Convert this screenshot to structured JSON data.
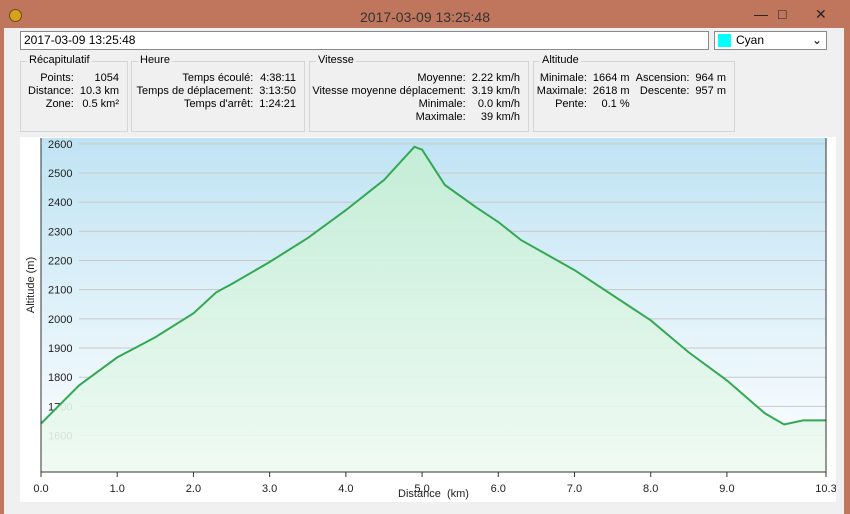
{
  "window": {
    "title": "2017-03-09 13:25:48"
  },
  "toolbar": {
    "field": "2017-03-09 13:25:48",
    "color": "Cyan"
  },
  "groups": [
    {
      "title": "Récapitulatif",
      "columns": 2,
      "items": [
        {
          "label": "Points:",
          "value": "1054"
        },
        {
          "label": "Distance:",
          "value": "10.3 km"
        },
        {
          "label": "Zone:",
          "value": "0.5 km²"
        }
      ]
    },
    {
      "title": "Heure",
      "columns": 2,
      "items": [
        {
          "label": "Temps écoulé:",
          "value": "4:38:11"
        },
        {
          "label": "Temps de déplacement:",
          "value": "3:13:50"
        },
        {
          "label": "Temps d'arrêt:",
          "value": "1:24:21"
        }
      ]
    },
    {
      "title": "Vitesse",
      "columns": 2,
      "items": [
        {
          "label": "Moyenne:",
          "value": "2.22 km/h"
        },
        {
          "label": "Vitesse moyenne déplacement:",
          "value": "3.19 km/h"
        },
        {
          "label": "Minimale:",
          "value": "0.0 km/h"
        },
        {
          "label": "Maximale:",
          "value": "39 km/h"
        }
      ]
    },
    {
      "title": "Altitude",
      "columns": 4,
      "items": [
        {
          "label": "Minimale:",
          "value": "1664 m"
        },
        {
          "label": "Ascension:",
          "value": "964 m"
        },
        {
          "label": "Maximale:",
          "value": "2618 m"
        },
        {
          "label": "Descente:",
          "value": "957 m"
        },
        {
          "label": "Pente:",
          "value": "0.1 %"
        }
      ]
    }
  ],
  "chart_data": {
    "type": "area",
    "x_label": "Distance  (km)",
    "y_label": "Altitude (m)",
    "color": "#33a853",
    "grid": true,
    "x": [
      0,
      0.5,
      1.0,
      1.5,
      2.0,
      2.3,
      2.5,
      3.0,
      3.5,
      4.0,
      4.5,
      4.9,
      5.0,
      5.3,
      5.7,
      6.0,
      6.3,
      7.0,
      8.0,
      8.5,
      9.0,
      9.5,
      9.75,
      10.0,
      10.3
    ],
    "values": [
      1641,
      1772,
      1868,
      1937,
      2019,
      2091,
      2119,
      2195,
      2277,
      2373,
      2476,
      2590,
      2580,
      2459,
      2384,
      2332,
      2270,
      2167,
      1995,
      1885,
      1789,
      1676,
      1638,
      1652,
      1652
    ],
    "xlim": [
      0,
      10.3
    ],
    "ylim": [
      1475,
      2620
    ],
    "xticks": [
      {
        "value": 0,
        "label": "0.0"
      },
      {
        "value": 1,
        "label": "1.0"
      },
      {
        "value": 2,
        "label": "2.0"
      },
      {
        "value": 3,
        "label": "3.0"
      },
      {
        "value": 4,
        "label": "4.0"
      },
      {
        "value": 5,
        "label": "5.0"
      },
      {
        "value": 6,
        "label": "6.0"
      },
      {
        "value": 7,
        "label": "7.0"
      },
      {
        "value": 8,
        "label": "8.0"
      },
      {
        "value": 9,
        "label": "9.0"
      },
      10.3
    ],
    "yticks": [
      1600,
      1700,
      1800,
      1900,
      2000,
      2100,
      2200,
      2300,
      2400,
      2500,
      2600
    ]
  }
}
